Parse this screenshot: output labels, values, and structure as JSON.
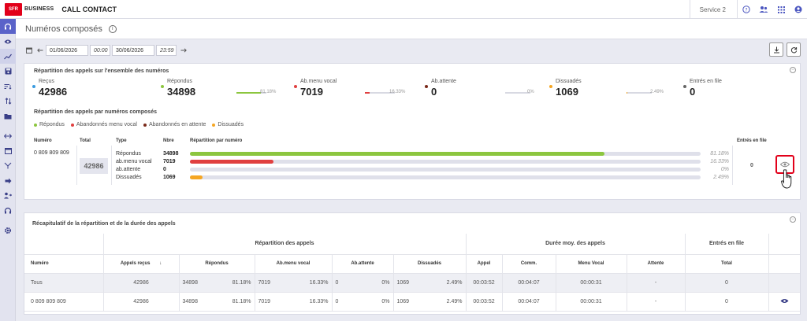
{
  "topbar": {
    "logo": "SFR",
    "brand": "BUSINESS",
    "app_title": "CALL CONTACT",
    "service": "Service 2",
    "icons": [
      "help-icon",
      "users-icon",
      "grid-icon",
      "account-icon"
    ]
  },
  "sidebar": {
    "icons": [
      "headset-icon",
      "eye-icon",
      "chart-icon",
      "save-icon",
      "sort-icon",
      "swap-icon",
      "folder-icon",
      "arrows-icon",
      "calendar-icon",
      "fork-icon",
      "arrow-right-icon",
      "people-arrow-icon",
      "headphones-icon",
      "gear-icon"
    ]
  },
  "page": {
    "title": "Numéros composés"
  },
  "datebar": {
    "start_date": "01/06/2026",
    "start_time": "00:00",
    "end_date": "30/06/2026",
    "end_time": "23:59"
  },
  "panel1": {
    "title": "Répartition des appels sur l'ensemble des numéros",
    "stats": [
      {
        "label": "Reçus",
        "value": "42986",
        "color": "#3a9be0"
      },
      {
        "label": "Répondus",
        "value": "34898",
        "color": "#8cc63f",
        "pct": "81.18%",
        "fraction": 0.8118
      },
      {
        "label": "Ab.menu vocal",
        "value": "7019",
        "color": "#e04040",
        "pct": "16.33%",
        "fraction": 0.1633
      },
      {
        "label": "Ab.attente",
        "value": "0",
        "color": "#7a2a1a",
        "pct": "0%",
        "fraction": 0
      },
      {
        "label": "Dissuadés",
        "value": "1069",
        "color": "#f5a623",
        "pct": "2.49%",
        "fraction": 0.0249
      },
      {
        "label": "Entrés en file",
        "value": "0",
        "color": "#666666"
      }
    ],
    "subtitle": "Répartition des appels par numéros composés",
    "legend": [
      {
        "label": "Répondus",
        "color": "#8cc63f"
      },
      {
        "label": "Abandonnés menu vocal",
        "color": "#e04040"
      },
      {
        "label": "Abandonnés en attente",
        "color": "#7a2a1a"
      },
      {
        "label": "Dissuadés",
        "color": "#f5a623"
      }
    ],
    "headers": {
      "numero": "Numéro",
      "total": "Total",
      "type": "Type",
      "nbre": "Nbre",
      "repartition": "Répartition par numéro",
      "entres": "Entrés en file"
    },
    "row": {
      "numero": "0 809 809 809",
      "total": "42986",
      "entres": "0",
      "types": [
        {
          "label": "Répondus",
          "value": "34898",
          "pct": "81.18%",
          "fraction": 0.8118,
          "color": "#8cc63f"
        },
        {
          "label": "ab.menu vocal",
          "value": "7019",
          "pct": "16.33%",
          "fraction": 0.1633,
          "color": "#e04040"
        },
        {
          "label": "ab.attente",
          "value": "0",
          "pct": "0%",
          "fraction": 0,
          "color": "#7a2a1a"
        },
        {
          "label": "Dissuadés",
          "value": "1069",
          "pct": "2.49%",
          "fraction": 0.0249,
          "color": "#f5a623"
        }
      ]
    }
  },
  "panel2": {
    "title": "Récapitulatif de la répartition et de la durée des appels",
    "group_headers": {
      "repartition": "Répartition des appels",
      "duree": "Durée moy. des appels",
      "entres": "Entrés en file"
    },
    "columns": {
      "numero": "Numéro",
      "appels_recus": "Appels reçus",
      "repondus": "Répondus",
      "ab_menu": "Ab.menu vocal",
      "ab_attente": "Ab.attente",
      "dissuades": "Dissuadés",
      "appel": "Appel",
      "comm": "Comm.",
      "menu_vocal": "Menu Vocal",
      "attente": "Attente",
      "total": "Total"
    },
    "rows": [
      {
        "numero": "Tous",
        "recus": "42986",
        "rep": "34898",
        "rep_pct": "81.18%",
        "menu": "7019",
        "menu_pct": "16.33%",
        "att": "0",
        "att_pct": "0%",
        "diss": "1069",
        "diss_pct": "2.49%",
        "appel": "00:03:52",
        "comm": "00:04:07",
        "menuvocal": "00:00:31",
        "attente": "-",
        "total": "0"
      },
      {
        "numero": "0 809 809 809",
        "recus": "42986",
        "rep": "34898",
        "rep_pct": "81.18%",
        "menu": "7019",
        "menu_pct": "16.33%",
        "att": "0",
        "att_pct": "0%",
        "diss": "1069",
        "diss_pct": "2.49%",
        "appel": "00:03:52",
        "comm": "00:04:07",
        "menuvocal": "00:00:31",
        "attente": "-",
        "total": "0"
      }
    ]
  }
}
